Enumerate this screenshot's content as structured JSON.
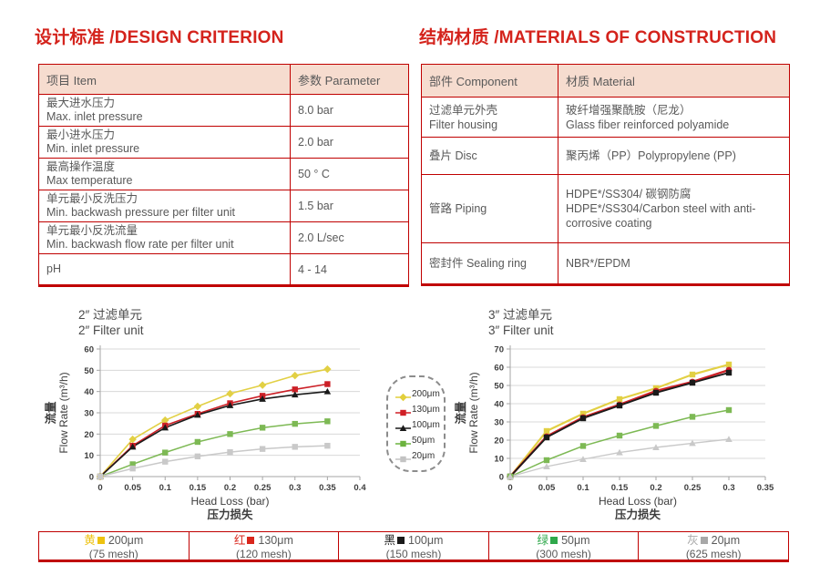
{
  "design": {
    "title": "设计标准 /DESIGN CRITERION",
    "col_item": "项目 Item",
    "col_param": "参数 Parameter",
    "rows": [
      {
        "zh": "最大进水压力",
        "en": "Max. inlet pressure",
        "param": "8.0 bar"
      },
      {
        "zh": "最小进水压力",
        "en": "Min. inlet pressure",
        "param": "2.0 bar"
      },
      {
        "zh": "最高操作温度",
        "en": "Max temperature",
        "param": "50 ° C"
      },
      {
        "zh": "单元最小反洗压力",
        "en": "Min. backwash pressure per filter unit",
        "param": "1.5 bar"
      },
      {
        "zh": "单元最小反洗流量",
        "en": "Min. backwash flow rate per filter unit",
        "param": "2.0 L/sec"
      },
      {
        "zh": "pH",
        "en": "",
        "param": "4 - 14"
      }
    ]
  },
  "materials": {
    "title": "结构材质 /MATERIALS OF CONSTRUCTION",
    "col_component": "部件 Component",
    "col_material": "材质 Material",
    "rows": [
      {
        "comp_zh": "过滤单元外壳",
        "comp_en": "Filter housing",
        "mat_zh": "玻纤增强聚酰胺（尼龙）",
        "mat_en": "Glass fiber reinforced polyamide"
      },
      {
        "comp_zh": "叠片 Disc",
        "comp_en": "",
        "mat_zh": "聚丙烯（PP）Polypropylene (PP)",
        "mat_en": ""
      },
      {
        "comp_zh": "管路 Piping",
        "comp_en": "",
        "mat_zh": "HDPE*/SS304/ 碳钢防腐",
        "mat_en": "HDPE*/SS304/Carbon steel with anti-corrosive coating"
      },
      {
        "comp_zh": "密封件 Sealing ring",
        "comp_en": "",
        "mat_zh": "NBR*/EPDM",
        "mat_en": ""
      }
    ]
  },
  "chart_data": [
    {
      "type": "line",
      "title_zh": "2″  过滤单元",
      "title_en": "2″  Filter unit",
      "xlabel": "Head Loss (bar)",
      "xlabel_zh": "压力损失",
      "ylabel_zh": "流量",
      "ylabel_en": "Flow Rate (m³/h)",
      "xlim": [
        0,
        0.4
      ],
      "ylim": [
        0,
        60
      ],
      "xticks": [
        0,
        0.05,
        0.1,
        0.15,
        0.2,
        0.25,
        0.3,
        0.35,
        0.4
      ],
      "yticks": [
        0,
        10,
        20,
        30,
        40,
        50,
        60
      ],
      "grid": "horizontal",
      "x": [
        0,
        0.05,
        0.1,
        0.15,
        0.2,
        0.25,
        0.3,
        0.35
      ],
      "series": [
        {
          "name": "200μm",
          "color": "#e2d044",
          "marker": "diamond",
          "width": 1.6,
          "values": [
            0,
            17.5,
            26.5,
            33,
            39,
            43,
            47.5,
            50.5
          ]
        },
        {
          "name": "130μm",
          "color": "#cc2027",
          "marker": "square",
          "width": 1.6,
          "values": [
            0,
            14.5,
            24,
            29.5,
            34.5,
            38,
            41,
            43.5
          ]
        },
        {
          "name": "100μm",
          "color": "#1a1a1a",
          "marker": "triangle",
          "width": 1.6,
          "values": [
            0,
            14,
            23,
            29,
            33.5,
            36.5,
            38.5,
            40
          ]
        },
        {
          "name": "50μm",
          "color": "#7db954",
          "marker": "square",
          "width": 1.5,
          "values": [
            0,
            5.8,
            11.3,
            16.3,
            20,
            23,
            24.8,
            26
          ]
        },
        {
          "name": "20μm",
          "color": "#c9c9c9",
          "marker": "square",
          "width": 1.5,
          "values": [
            0,
            3.8,
            7,
            9.5,
            11.5,
            13,
            14,
            14.5
          ]
        }
      ]
    },
    {
      "type": "line",
      "title_zh": "3″  过滤单元",
      "title_en": "3″  Filter unit",
      "xlabel": "Head Loss (bar)",
      "xlabel_zh": "压力损失",
      "ylabel_zh": "流量",
      "ylabel_en": "Flow Rate (m³/h)",
      "xlim": [
        0,
        0.35
      ],
      "ylim": [
        0,
        70
      ],
      "xticks": [
        0,
        0.05,
        0.1,
        0.15,
        0.2,
        0.25,
        0.3,
        0.35
      ],
      "yticks": [
        0,
        10,
        20,
        30,
        40,
        50,
        60,
        70
      ],
      "grid": "horizontal",
      "x": [
        0,
        0.05,
        0.1,
        0.15,
        0.2,
        0.25,
        0.3
      ],
      "series": [
        {
          "name": "200μm",
          "color": "#e2d044",
          "marker": "square",
          "width": 2.2,
          "values": [
            0,
            25,
            34.5,
            42.5,
            48.5,
            56,
            61.5
          ]
        },
        {
          "name": "130μm",
          "color": "#cc2027",
          "marker": "circle",
          "width": 2.4,
          "values": [
            0,
            22,
            32.5,
            39.5,
            47,
            52,
            58.5
          ]
        },
        {
          "name": "100μm",
          "color": "#1a1a1a",
          "marker": "square",
          "width": 1.8,
          "values": [
            0,
            21.5,
            32,
            39,
            46,
            51.5,
            57
          ]
        },
        {
          "name": "50μm",
          "color": "#7db954",
          "marker": "square",
          "width": 1.5,
          "values": [
            0,
            9,
            16.8,
            22.5,
            27.8,
            32.8,
            36.5
          ]
        },
        {
          "name": "20μm",
          "color": "#c9c9c9",
          "marker": "triangle",
          "width": 1.4,
          "values": [
            0,
            5.5,
            9.5,
            13.2,
            16,
            18.3,
            20.5
          ]
        }
      ]
    }
  ],
  "mid_legend": {
    "entries": [
      {
        "label": "200μm",
        "color": "#e2cf3c",
        "marker": "diamond"
      },
      {
        "label": "130μm",
        "color": "#d01f26",
        "marker": "square"
      },
      {
        "label": "100μm",
        "color": "#1a1a1a",
        "marker": "triangle"
      },
      {
        "label": "50μm",
        "color": "#6cb33f",
        "marker": "square"
      },
      {
        "label": "20μm",
        "color": "#c3c3c3",
        "marker": "square"
      }
    ]
  },
  "bottom_legend": {
    "cells": [
      {
        "color_zh": "黄",
        "color": "#edc211",
        "size": "200μm",
        "mesh": "(75 mesh)"
      },
      {
        "color_zh": "红",
        "color": "#d9261c",
        "size": "130μm",
        "mesh": "(120 mesh)"
      },
      {
        "color_zh": "黑",
        "color": "#1a1a1a",
        "size": "100μm",
        "mesh": "(150 mesh)"
      },
      {
        "color_zh": "绿",
        "color": "#2fa84b",
        "size": "50μm",
        "mesh": "(300 mesh)"
      },
      {
        "color_zh": "灰",
        "color": "#a8a8a8",
        "size": "20μm",
        "mesh": "(625 mesh)"
      }
    ]
  }
}
